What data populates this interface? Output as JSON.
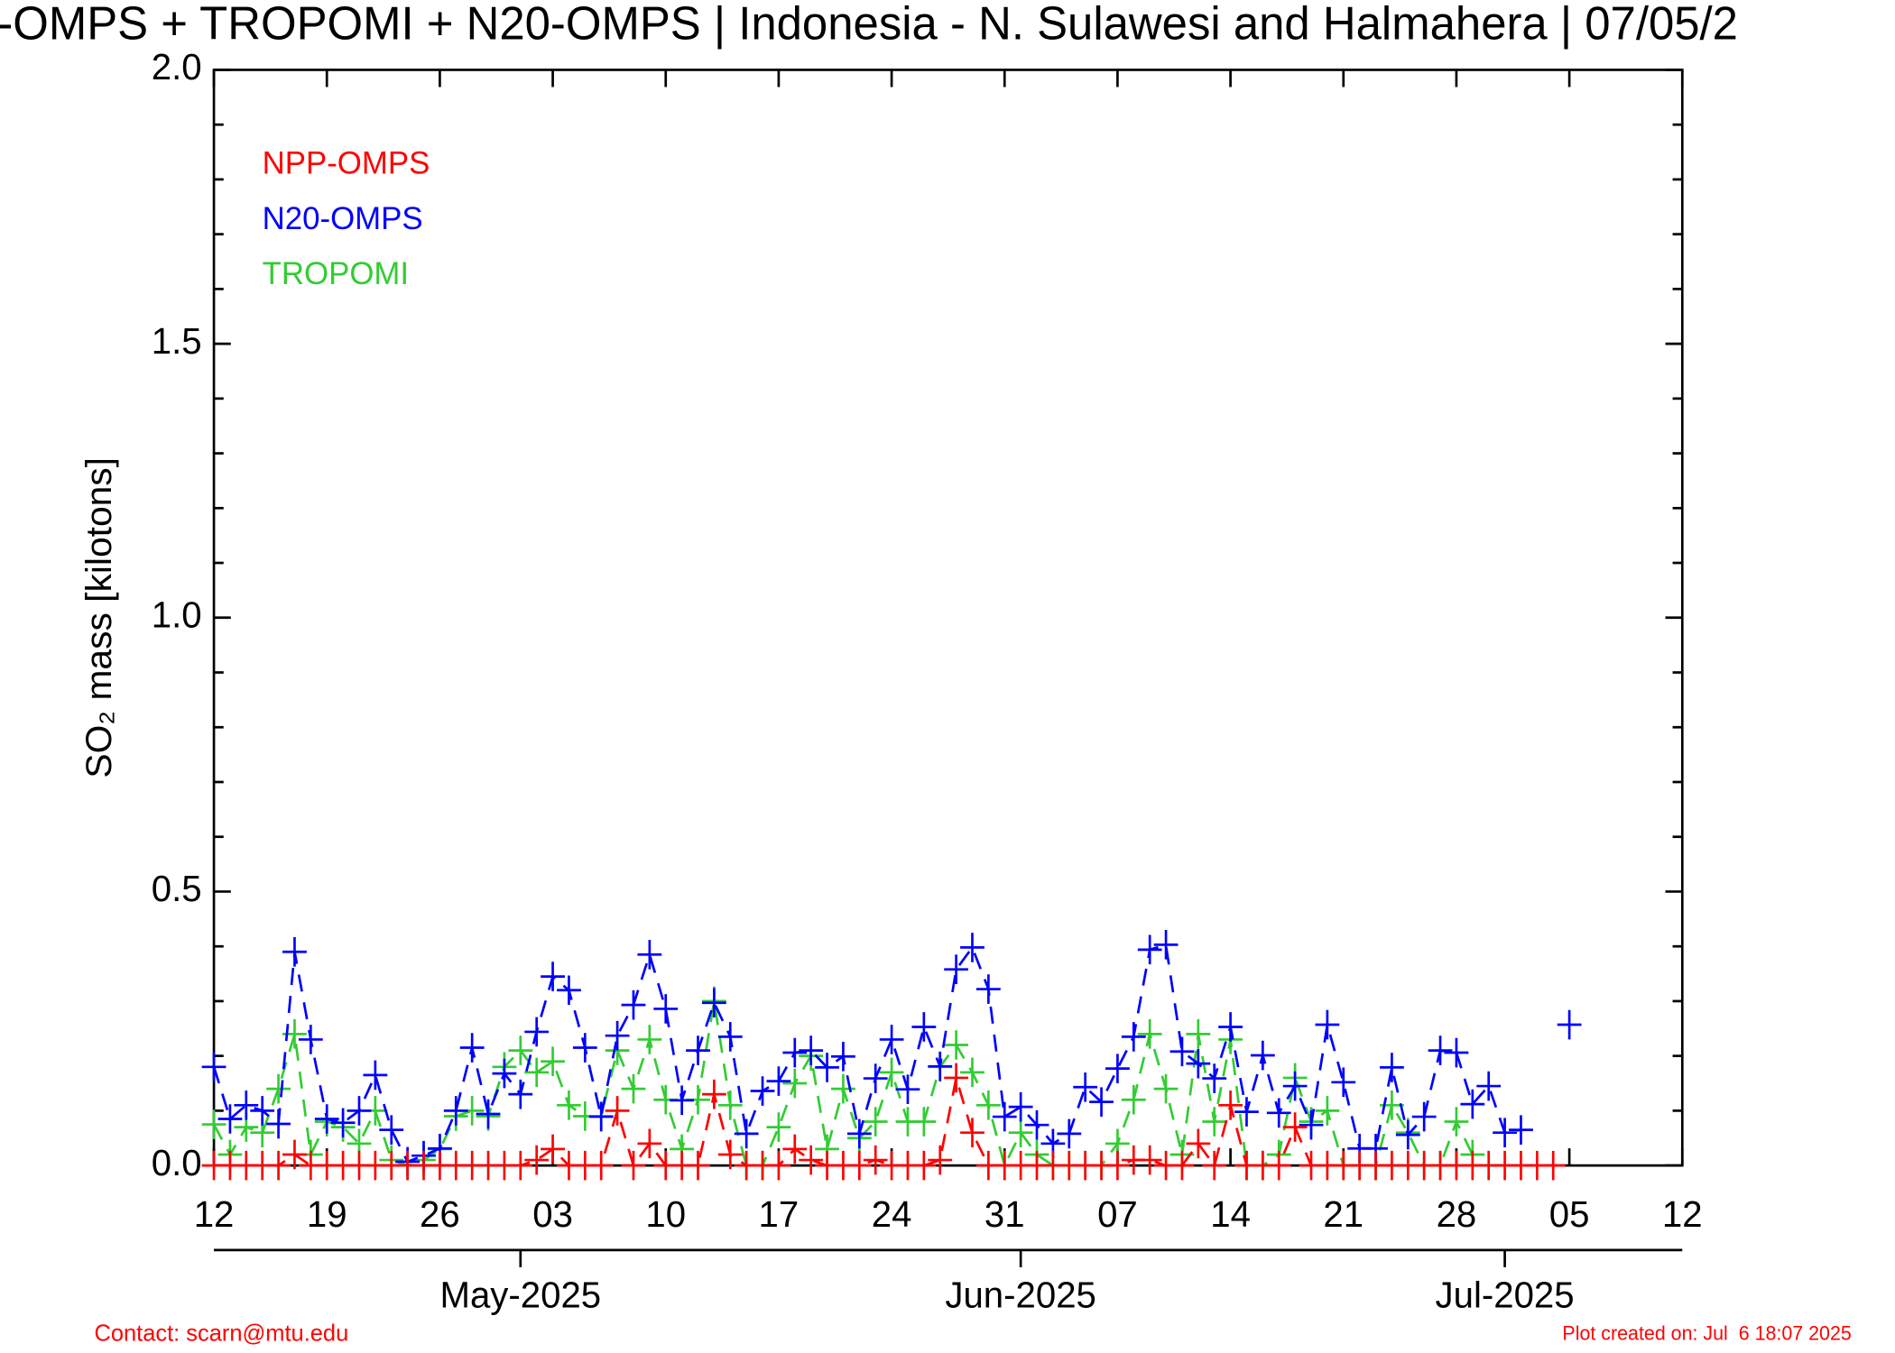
{
  "chart_data": {
    "type": "line",
    "title": "-OMPS + TROPOMI + N20-OMPS | Indonesia - N. Sulawesi and Halmahera | 07/05/2",
    "y_label": "SO₂ mass [kilotons]",
    "x": [
      "2025-04-12",
      "2025-04-13",
      "2025-04-14",
      "2025-04-15",
      "2025-04-16",
      "2025-04-17",
      "2025-04-18",
      "2025-04-19",
      "2025-04-20",
      "2025-04-21",
      "2025-04-22",
      "2025-04-23",
      "2025-04-24",
      "2025-04-25",
      "2025-04-26",
      "2025-04-27",
      "2025-04-28",
      "2025-04-29",
      "2025-04-30",
      "2025-05-01",
      "2025-05-02",
      "2025-05-03",
      "2025-05-04",
      "2025-05-05",
      "2025-05-06",
      "2025-05-07",
      "2025-05-08",
      "2025-05-09",
      "2025-05-10",
      "2025-05-11",
      "2025-05-12",
      "2025-05-13",
      "2025-05-14",
      "2025-05-15",
      "2025-05-16",
      "2025-05-17",
      "2025-05-18",
      "2025-05-19",
      "2025-05-20",
      "2025-05-21",
      "2025-05-22",
      "2025-05-23",
      "2025-05-24",
      "2025-05-25",
      "2025-05-26",
      "2025-05-27",
      "2025-05-28",
      "2025-05-29",
      "2025-05-30",
      "2025-05-31",
      "2025-06-01",
      "2025-06-02",
      "2025-06-03",
      "2025-06-04",
      "2025-06-05",
      "2025-06-06",
      "2025-06-07",
      "2025-06-08",
      "2025-06-09",
      "2025-06-10",
      "2025-06-11",
      "2025-06-12",
      "2025-06-13",
      "2025-06-14",
      "2025-06-15",
      "2025-06-16",
      "2025-06-17",
      "2025-06-18",
      "2025-06-19",
      "2025-06-20",
      "2025-06-21",
      "2025-06-22",
      "2025-06-23",
      "2025-06-24",
      "2025-06-25",
      "2025-06-26",
      "2025-06-27",
      "2025-06-28",
      "2025-06-29",
      "2025-06-30",
      "2025-07-01",
      "2025-07-02",
      "2025-07-03",
      "2025-07-04",
      "2025-07-05"
    ],
    "series": [
      {
        "name": "NPP-OMPS",
        "color": "#ff0000",
        "values": [
          0,
          0,
          0,
          0,
          0,
          0.02,
          0,
          0,
          0,
          0,
          0,
          0,
          0,
          0,
          0,
          0,
          0,
          0,
          0,
          0,
          0.01,
          0.03,
          0,
          0,
          0,
          0.1,
          0,
          0.04,
          0,
          0,
          0,
          0.13,
          0.02,
          0,
          0,
          0,
          0.03,
          0.01,
          0,
          0,
          0,
          0.01,
          0,
          0,
          0,
          0.01,
          0.16,
          0.06,
          0,
          0,
          0,
          0,
          0,
          0,
          0,
          0,
          0,
          0.01,
          0.01,
          0,
          0,
          0.04,
          0,
          0.11,
          0,
          0,
          0,
          0.07,
          0,
          0,
          0,
          0,
          0,
          0,
          0,
          0,
          0,
          0,
          0,
          0,
          0,
          0,
          0,
          0,
          null
        ]
      },
      {
        "name": "N20-OMPS",
        "color": "#0000ff",
        "values": [
          0.18,
          0.085,
          0.11,
          0.1,
          0.076,
          0.39,
          0.23,
          0.085,
          0.078,
          0.1,
          0.165,
          0.065,
          0.007,
          0.018,
          0.031,
          0.1,
          0.215,
          0.094,
          0.168,
          0.13,
          0.244,
          0.345,
          0.32,
          0.215,
          0.089,
          0.237,
          0.293,
          0.385,
          0.286,
          0.119,
          0.21,
          0.297,
          0.235,
          0.058,
          0.136,
          0.154,
          0.206,
          0.21,
          0.179,
          0.199,
          0.058,
          0.159,
          0.23,
          0.139,
          0.253,
          0.181,
          0.358,
          0.398,
          0.322,
          0.089,
          0.107,
          0.074,
          0.04,
          0.058,
          0.143,
          0.116,
          0.177,
          0.235,
          0.394,
          0.403,
          0.208,
          0.186,
          0.159,
          0.253,
          0.098,
          0.201,
          0.096,
          0.145,
          0.074,
          0.257,
          0.152,
          0.031,
          0.031,
          0.179,
          0.056,
          0.089,
          0.21,
          0.206,
          0.112,
          0.145,
          0.06,
          0.065,
          null,
          null,
          0.257
        ]
      },
      {
        "name": "TROPOMI",
        "color": "#33cc33",
        "values": [
          0.075,
          0.02,
          0.07,
          0.06,
          0.14,
          0.24,
          0.02,
          0.08,
          0.07,
          0.04,
          0.1,
          0.01,
          0,
          0.01,
          0.03,
          0.09,
          0.1,
          0.09,
          0.18,
          0.21,
          0.17,
          0.19,
          0.11,
          0.09,
          0.09,
          0.21,
          0.14,
          0.23,
          0.12,
          0.03,
          0.12,
          0.3,
          0.11,
          0,
          0,
          0.07,
          0.15,
          0.2,
          0.03,
          0.14,
          0.05,
          0.08,
          0.17,
          0.08,
          0.08,
          0.18,
          0.22,
          0.17,
          0.11,
          0,
          0.06,
          0.02,
          0,
          0,
          0,
          0,
          0.04,
          0.12,
          0.24,
          0.14,
          0.02,
          0.24,
          0.08,
          0.23,
          0,
          0,
          0.02,
          0.16,
          0.08,
          0.1,
          0,
          0,
          0,
          0.11,
          0.06,
          0,
          0,
          0.08,
          0.02,
          null,
          null,
          null,
          null,
          null,
          null
        ]
      }
    ],
    "xlim": [
      "2025-04-12",
      "2025-07-12"
    ],
    "xticks": [
      {
        "value": "2025-04-12",
        "label": "12"
      },
      {
        "value": "2025-04-19",
        "label": "19"
      },
      {
        "value": "2025-04-26",
        "label": "26"
      },
      {
        "value": "2025-05-03",
        "label": "03"
      },
      {
        "value": "2025-05-10",
        "label": "10"
      },
      {
        "value": "2025-05-17",
        "label": "17"
      },
      {
        "value": "2025-05-24",
        "label": "24"
      },
      {
        "value": "2025-05-31",
        "label": "31"
      },
      {
        "value": "2025-06-07",
        "label": "07"
      },
      {
        "value": "2025-06-14",
        "label": "14"
      },
      {
        "value": "2025-06-21",
        "label": "21"
      },
      {
        "value": "2025-06-28",
        "label": "28"
      },
      {
        "value": "2025-07-05",
        "label": "05"
      },
      {
        "value": "2025-07-12",
        "label": "12"
      }
    ],
    "month_ticks": [
      {
        "value": "2025-05-01",
        "label": "May-2025"
      },
      {
        "value": "2025-06-01",
        "label": "Jun-2025"
      },
      {
        "value": "2025-07-01",
        "label": "Jul-2025"
      }
    ],
    "ylim": [
      0,
      2
    ],
    "yticks": [
      {
        "value": 0,
        "label": "0.0"
      },
      {
        "value": 0.5,
        "label": "0.5"
      },
      {
        "value": 1,
        "label": "1.0"
      },
      {
        "value": 1.5,
        "label": "1.5"
      },
      {
        "value": 2,
        "label": "2.0"
      }
    ],
    "yminorticks": [
      0.1,
      0.2,
      0.3,
      0.4,
      0.6,
      0.7,
      0.8,
      0.9,
      1.1,
      1.2,
      1.3,
      1.4,
      1.6,
      1.7,
      1.8,
      1.9
    ],
    "legend": "upper left",
    "contact": "Contact: scarn@mtu.edu",
    "created": "Plot created on: Jul  6 18:07 2025"
  }
}
